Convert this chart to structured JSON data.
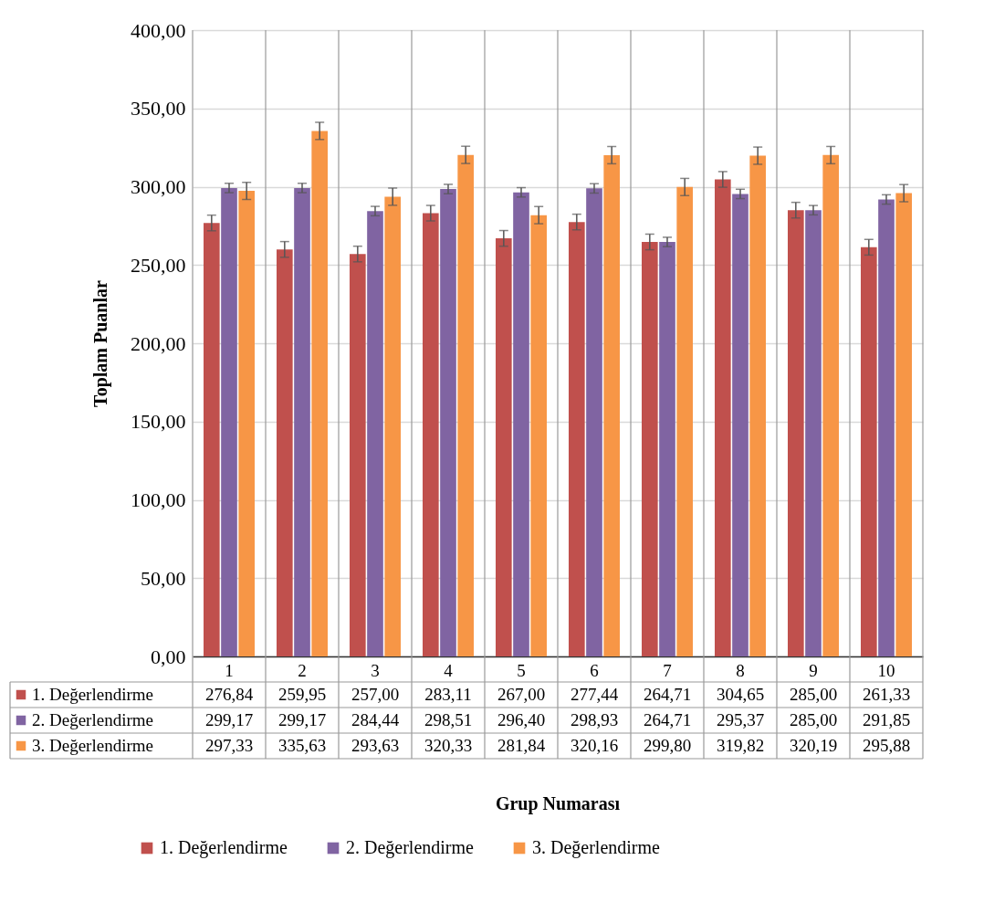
{
  "chart_data": {
    "type": "bar",
    "ylabel": "Toplam Puanlar",
    "annotations": [
      "Grup Numarası"
    ],
    "categories": [
      "1",
      "2",
      "3",
      "4",
      "5",
      "6",
      "7",
      "8",
      "9",
      "10"
    ],
    "series": [
      {
        "name": "1. Değerlendirme",
        "color": "#c0504d",
        "values": [
          276.84,
          259.95,
          257.0,
          283.11,
          267.0,
          277.44,
          264.71,
          304.65,
          285.0,
          261.33
        ],
        "value_labels": [
          "276,84",
          "259,95",
          "257,00",
          "283,11",
          "267,00",
          "277,44",
          "264,71",
          "304,65",
          "285,00",
          "261,33"
        ],
        "errors": [
          5,
          5,
          5,
          5,
          5,
          5,
          5,
          5,
          5,
          5
        ]
      },
      {
        "name": "2. Değerlendirme",
        "color": "#8064a2",
        "values": [
          299.17,
          299.17,
          284.44,
          298.51,
          296.4,
          298.93,
          264.71,
          295.37,
          285.0,
          291.85
        ],
        "value_labels": [
          "299,17",
          "299,17",
          "284,44",
          "298,51",
          "296,40",
          "298,93",
          "264,71",
          "295,37",
          "285,00",
          "291,85"
        ],
        "errors": [
          3,
          3,
          3,
          3,
          3,
          3,
          3,
          3,
          3,
          3
        ]
      },
      {
        "name": "3. Değerlendirme",
        "color": "#f79646",
        "values": [
          297.33,
          335.63,
          293.63,
          320.33,
          281.84,
          320.16,
          299.8,
          319.82,
          320.19,
          295.88
        ],
        "value_labels": [
          "297,33",
          "335,63",
          "293,63",
          "320,33",
          "281,84",
          "320,16",
          "299,80",
          "319,82",
          "320,19",
          "295,88"
        ],
        "errors": [
          5.5,
          5.5,
          5.5,
          5.5,
          5.5,
          5.5,
          5.5,
          5.5,
          5.5,
          5.5
        ]
      }
    ],
    "ylim": [
      0,
      400
    ],
    "yticks": [
      {
        "value": 0,
        "label": "0,00"
      },
      {
        "value": 50,
        "label": "50,00"
      },
      {
        "value": 100,
        "label": "100,00"
      },
      {
        "value": 150,
        "label": "150,00"
      },
      {
        "value": 200,
        "label": "200,00"
      },
      {
        "value": 250,
        "label": "250,00"
      },
      {
        "value": 300,
        "label": "300,00"
      },
      {
        "value": 350,
        "label": "350,00"
      },
      {
        "value": 400,
        "label": "400,00"
      }
    ],
    "grid": true,
    "legend": "bottom"
  }
}
